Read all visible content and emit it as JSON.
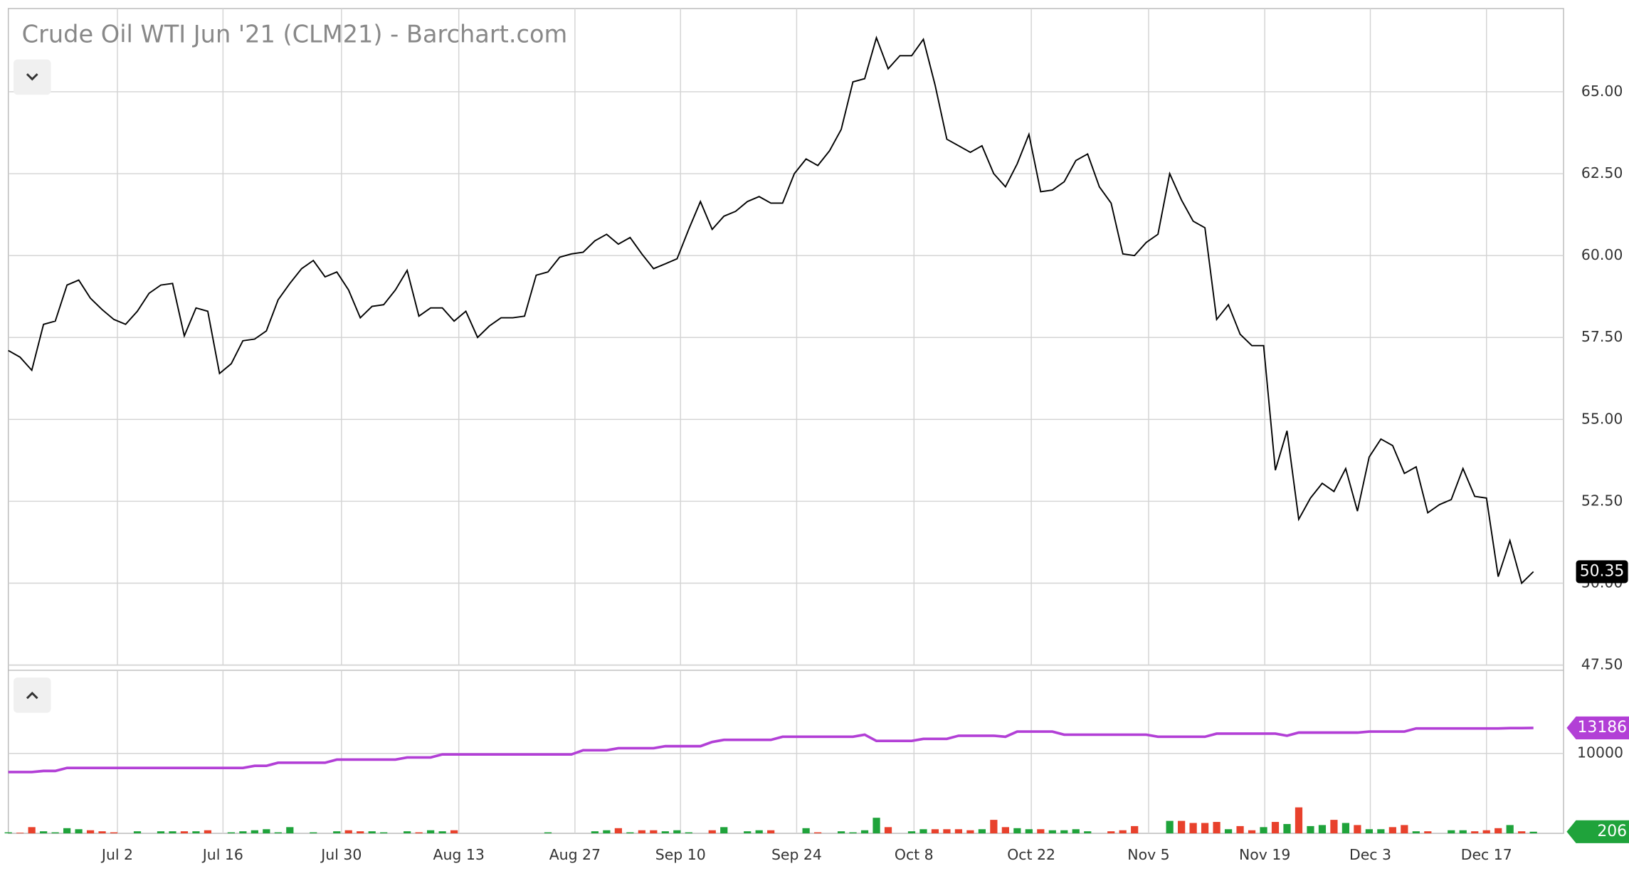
{
  "chart_data": [
    {
      "type": "line",
      "title": "Crude Oil WTI Jun '21 (CLM21) - Barchart.com",
      "series": [
        {
          "color": "#000000",
          "values": [
            57.1,
            56.9,
            56.5,
            57.9,
            58.0,
            59.1,
            59.25,
            58.7,
            58.35,
            58.05,
            57.9,
            58.3,
            58.85,
            59.1,
            59.15,
            57.55,
            58.4,
            58.3,
            56.4,
            56.7,
            57.4,
            57.45,
            57.7,
            58.65,
            59.15,
            59.6,
            59.85,
            59.35,
            59.5,
            58.95,
            58.1,
            58.45,
            58.5,
            58.95,
            59.55,
            58.15,
            58.4,
            58.4,
            58.0,
            58.3,
            57.5,
            57.85,
            58.1,
            58.1,
            58.15,
            59.4,
            59.5,
            59.95,
            60.05,
            60.1,
            60.45,
            60.65,
            60.35,
            60.55,
            60.05,
            59.6,
            59.75,
            59.9,
            60.8,
            61.65,
            60.8,
            61.2,
            61.35,
            61.65,
            61.8,
            61.6,
            61.6,
            62.5,
            62.95,
            62.75,
            63.2,
            63.85,
            65.3,
            65.4,
            66.65,
            65.7,
            66.1,
            66.1,
            66.6,
            65.2,
            63.55,
            63.35,
            63.15,
            63.35,
            62.5,
            62.1,
            62.8,
            63.7,
            61.95,
            62.0,
            62.25,
            62.9,
            63.1,
            62.1,
            61.6,
            60.05,
            60.0,
            60.4,
            60.65,
            62.5,
            61.7,
            61.05,
            60.85,
            58.05,
            58.5,
            57.6,
            57.25,
            57.25,
            53.45,
            54.65,
            51.95,
            52.6,
            53.05,
            52.8,
            53.5,
            52.2,
            53.85,
            54.4,
            54.2,
            53.35,
            53.55,
            52.15,
            52.4,
            52.55,
            53.5,
            52.65,
            52.6,
            50.2,
            51.3,
            50.0,
            50.35
          ]
        }
      ],
      "xlim": [
        0,
        132.57
      ],
      "ylim": [
        47.5,
        67.54
      ],
      "xticks": [
        {
          "value": 9.3,
          "label": "Jul 2"
        },
        {
          "value": 18.3,
          "label": "Jul 16"
        },
        {
          "value": 28.4,
          "label": "Jul 30"
        },
        {
          "value": 38.4,
          "label": "Aug 13"
        },
        {
          "value": 48.3,
          "label": "Aug 27"
        },
        {
          "value": 57.3,
          "label": "Sep 10"
        },
        {
          "value": 67.2,
          "label": "Sep 24"
        },
        {
          "value": 77.2,
          "label": "Oct 8"
        },
        {
          "value": 87.2,
          "label": "Oct 22"
        },
        {
          "value": 97.2,
          "label": "Nov 5"
        },
        {
          "value": 107.1,
          "label": "Nov 19"
        },
        {
          "value": 116.1,
          "label": "Dec 3"
        },
        {
          "value": 126.0,
          "label": "Dec 17"
        }
      ],
      "yticks": [
        {
          "value": 65,
          "label": "65.00"
        },
        {
          "value": 62.5,
          "label": "62.50"
        },
        {
          "value": 60,
          "label": "60.00"
        },
        {
          "value": 57.5,
          "label": "57.50"
        },
        {
          "value": 55,
          "label": "55.00"
        },
        {
          "value": 52.5,
          "label": "52.50"
        },
        {
          "value": 50,
          "label": "50.00"
        },
        {
          "value": 47.5,
          "label": "47.50"
        }
      ],
      "grid": true
    },
    {
      "type": "combo",
      "series": [
        {
          "type": "line",
          "color": "#b23fd6",
          "values": [
            7660,
            7660,
            7660,
            7800,
            7800,
            8180,
            8180,
            8180,
            8180,
            8180,
            8180,
            8180,
            8180,
            8180,
            8180,
            8180,
            8180,
            8180,
            8180,
            8180,
            8180,
            8440,
            8440,
            8830,
            8830,
            8830,
            8830,
            8830,
            9220,
            9220,
            9220,
            9220,
            9220,
            9220,
            9500,
            9500,
            9500,
            9870,
            9870,
            9870,
            9870,
            9870,
            9870,
            9870,
            9870,
            9870,
            9870,
            9870,
            9870,
            10390,
            10390,
            10390,
            10650,
            10650,
            10650,
            10650,
            10900,
            10900,
            10900,
            10900,
            11430,
            11690,
            11690,
            11690,
            11690,
            11690,
            12080,
            12080,
            12080,
            12080,
            12080,
            12080,
            12080,
            12340,
            11560,
            11560,
            11560,
            11560,
            11820,
            11820,
            11820,
            12210,
            12210,
            12210,
            12210,
            12080,
            12730,
            12730,
            12730,
            12730,
            12340,
            12340,
            12340,
            12340,
            12340,
            12340,
            12340,
            12340,
            12080,
            12080,
            12080,
            12080,
            12080,
            12470,
            12470,
            12470,
            12470,
            12470,
            12470,
            12210,
            12600,
            12600,
            12600,
            12600,
            12600,
            12600,
            12730,
            12730,
            12730,
            12730,
            13120,
            13120,
            13120,
            13120,
            13120,
            13120,
            13120,
            13120,
            13150,
            13160,
            13186
          ]
        },
        {
          "type": "bar",
          "up_color": "#1fa33b",
          "down_color": "#e8412c",
          "values": [
            130,
            80,
            780,
            260,
            130,
            650,
            520,
            390,
            260,
            130,
            0,
            260,
            0,
            260,
            260,
            260,
            260,
            390,
            0,
            130,
            260,
            390,
            520,
            130,
            780,
            0,
            130,
            0,
            260,
            390,
            260,
            260,
            130,
            0,
            260,
            130,
            390,
            260,
            390,
            0,
            0,
            0,
            0,
            0,
            0,
            0,
            130,
            0,
            0,
            0,
            260,
            390,
            650,
            130,
            390,
            390,
            260,
            390,
            130,
            0,
            390,
            780,
            0,
            260,
            390,
            390,
            0,
            0,
            650,
            130,
            0,
            260,
            130,
            390,
            1950,
            780,
            0,
            260,
            520,
            520,
            520,
            520,
            390,
            520,
            1690,
            780,
            650,
            520,
            520,
            390,
            390,
            520,
            260,
            0,
            260,
            390,
            910,
            0,
            0,
            1560,
            1560,
            1300,
            1300,
            1430,
            520,
            910,
            390,
            780,
            1430,
            1170,
            3250,
            910,
            1040,
            1690,
            1300,
            1040,
            520,
            520,
            780,
            1040,
            260,
            260,
            0,
            390,
            390,
            260,
            390,
            650,
            1040,
            260,
            206
          ]
        }
      ],
      "ylim": [
        0,
        20390
      ],
      "yticks": [
        10000
      ],
      "grid": true
    }
  ]
}
